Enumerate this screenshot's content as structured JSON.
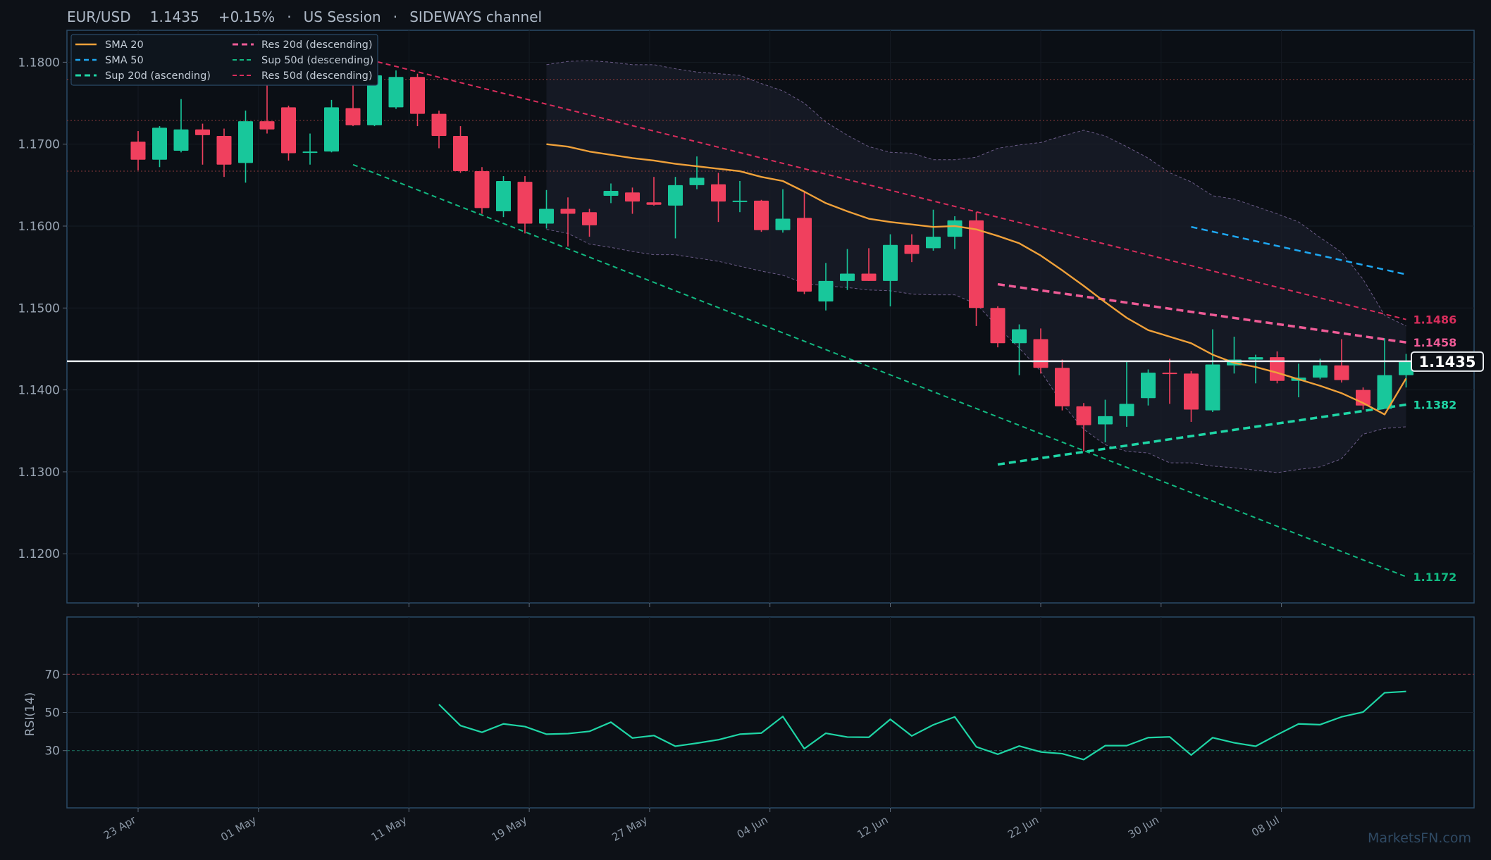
{
  "header": {
    "symbol": "EUR/USD",
    "price": "1.1435",
    "change": "+0.15%",
    "session": "US Session",
    "regime": "SIDEWAYS channel",
    "separator": "·"
  },
  "watermark": "MarketsFN.com",
  "colors": {
    "background": "#0d1117",
    "up": "#18c79b",
    "down": "#f0405e",
    "sma20": "#f0a13a",
    "sma50": "#1ea7f2",
    "sup20": "#1fd6a6",
    "res20": "#ee5b96",
    "sup50": "#12b981",
    "res50": "#d92d5c",
    "rsi": "#1fd6a6",
    "axis": "#2b4a67"
  },
  "chart_data": [
    {
      "type": "candlestick",
      "title": "EUR/USD",
      "ylim": [
        1.114,
        1.1839
      ],
      "y_ticks": [
        1.12,
        1.13,
        1.14,
        1.15,
        1.16,
        1.17,
        1.18
      ],
      "y_tick_labels": [
        "1.1200",
        "1.1300",
        "1.1400",
        "1.1500",
        "1.1600",
        "1.1700",
        "1.1800"
      ],
      "x_tick_labels": [
        {
          "date": "2025-04-23",
          "label": "23 Apr"
        },
        {
          "date": "2025-05-01",
          "label": "01 May"
        },
        {
          "date": "2025-05-11",
          "label": "11 May"
        },
        {
          "date": "2025-05-19",
          "label": "19 May"
        },
        {
          "date": "2025-05-27",
          "label": "27 May"
        },
        {
          "date": "2025-06-04",
          "label": "04 Jun"
        },
        {
          "date": "2025-06-12",
          "label": "12 Jun"
        },
        {
          "date": "2025-06-22",
          "label": "22 Jun"
        },
        {
          "date": "2025-06-30",
          "label": "30 Jun"
        },
        {
          "date": "2025-07-08",
          "label": "08 Jul"
        }
      ],
      "candles": [
        {
          "o": 1.1703,
          "h": 1.1716,
          "l": 1.1668,
          "c": 1.1681
        },
        {
          "o": 1.1681,
          "h": 1.1722,
          "l": 1.1672,
          "c": 1.172
        },
        {
          "o": 1.1692,
          "h": 1.1755,
          "l": 1.169,
          "c": 1.1718
        },
        {
          "o": 1.1718,
          "h": 1.1725,
          "l": 1.1675,
          "c": 1.1711
        },
        {
          "o": 1.171,
          "h": 1.1719,
          "l": 1.166,
          "c": 1.1675
        },
        {
          "o": 1.1677,
          "h": 1.1741,
          "l": 1.1653,
          "c": 1.1728
        },
        {
          "o": 1.1728,
          "h": 1.1778,
          "l": 1.1713,
          "c": 1.1718
        },
        {
          "o": 1.1745,
          "h": 1.1747,
          "l": 1.168,
          "c": 1.1689
        },
        {
          "o": 1.169,
          "h": 1.1713,
          "l": 1.1675,
          "c": 1.1691
        },
        {
          "o": 1.1691,
          "h": 1.1754,
          "l": 1.169,
          "c": 1.1745
        },
        {
          "o": 1.1744,
          "h": 1.179,
          "l": 1.1722,
          "c": 1.1723
        },
        {
          "o": 1.1723,
          "h": 1.1795,
          "l": 1.1722,
          "c": 1.1784
        },
        {
          "o": 1.1745,
          "h": 1.179,
          "l": 1.1743,
          "c": 1.1782
        },
        {
          "o": 1.1782,
          "h": 1.1786,
          "l": 1.1722,
          "c": 1.1737
        },
        {
          "o": 1.1737,
          "h": 1.1741,
          "l": 1.1695,
          "c": 1.171
        },
        {
          "o": 1.171,
          "h": 1.1722,
          "l": 1.1665,
          "c": 1.1667
        },
        {
          "o": 1.1667,
          "h": 1.1672,
          "l": 1.1615,
          "c": 1.1622
        },
        {
          "o": 1.1618,
          "h": 1.1661,
          "l": 1.1611,
          "c": 1.1655
        },
        {
          "o": 1.1654,
          "h": 1.1661,
          "l": 1.1591,
          "c": 1.1603
        },
        {
          "o": 1.1603,
          "h": 1.1644,
          "l": 1.1597,
          "c": 1.1621
        },
        {
          "o": 1.1621,
          "h": 1.1635,
          "l": 1.1575,
          "c": 1.1615
        },
        {
          "o": 1.1617,
          "h": 1.1621,
          "l": 1.1587,
          "c": 1.1601
        },
        {
          "o": 1.1637,
          "h": 1.1652,
          "l": 1.1628,
          "c": 1.1643
        },
        {
          "o": 1.1641,
          "h": 1.1647,
          "l": 1.1615,
          "c": 1.163
        },
        {
          "o": 1.1629,
          "h": 1.166,
          "l": 1.1625,
          "c": 1.1626
        },
        {
          "o": 1.1625,
          "h": 1.166,
          "l": 1.1585,
          "c": 1.165
        },
        {
          "o": 1.165,
          "h": 1.1685,
          "l": 1.1645,
          "c": 1.1659
        },
        {
          "o": 1.1651,
          "h": 1.1665,
          "l": 1.1605,
          "c": 1.163
        },
        {
          "o": 1.163,
          "h": 1.1655,
          "l": 1.1617,
          "c": 1.1631
        },
        {
          "o": 1.1631,
          "h": 1.1632,
          "l": 1.1593,
          "c": 1.1595
        },
        {
          "o": 1.1595,
          "h": 1.1645,
          "l": 1.1592,
          "c": 1.1609
        },
        {
          "o": 1.161,
          "h": 1.1643,
          "l": 1.1517,
          "c": 1.152
        },
        {
          "o": 1.1508,
          "h": 1.1555,
          "l": 1.1497,
          "c": 1.1533
        },
        {
          "o": 1.1533,
          "h": 1.1572,
          "l": 1.1522,
          "c": 1.1542
        },
        {
          "o": 1.1542,
          "h": 1.1573,
          "l": 1.1533,
          "c": 1.1533
        },
        {
          "o": 1.1533,
          "h": 1.159,
          "l": 1.1502,
          "c": 1.1577
        },
        {
          "o": 1.1577,
          "h": 1.159,
          "l": 1.1556,
          "c": 1.1566
        },
        {
          "o": 1.1573,
          "h": 1.162,
          "l": 1.157,
          "c": 1.1587
        },
        {
          "o": 1.1587,
          "h": 1.1612,
          "l": 1.1572,
          "c": 1.1607
        },
        {
          "o": 1.1607,
          "h": 1.1617,
          "l": 1.1478,
          "c": 1.15
        },
        {
          "o": 1.15,
          "h": 1.1502,
          "l": 1.1452,
          "c": 1.1457
        },
        {
          "o": 1.1457,
          "h": 1.148,
          "l": 1.1418,
          "c": 1.1474
        },
        {
          "o": 1.1462,
          "h": 1.1475,
          "l": 1.142,
          "c": 1.1427
        },
        {
          "o": 1.1427,
          "h": 1.1437,
          "l": 1.1375,
          "c": 1.138
        },
        {
          "o": 1.138,
          "h": 1.1384,
          "l": 1.1325,
          "c": 1.1357
        },
        {
          "o": 1.1358,
          "h": 1.1388,
          "l": 1.1336,
          "c": 1.1368
        },
        {
          "o": 1.1368,
          "h": 1.1435,
          "l": 1.1355,
          "c": 1.1383
        },
        {
          "o": 1.139,
          "h": 1.1425,
          "l": 1.1381,
          "c": 1.1421
        },
        {
          "o": 1.1421,
          "h": 1.1438,
          "l": 1.1383,
          "c": 1.142
        },
        {
          "o": 1.142,
          "h": 1.1423,
          "l": 1.1361,
          "c": 1.1376
        },
        {
          "o": 1.1375,
          "h": 1.1474,
          "l": 1.1373,
          "c": 1.1431
        },
        {
          "o": 1.143,
          "h": 1.1465,
          "l": 1.142,
          "c": 1.1437
        },
        {
          "o": 1.1437,
          "h": 1.1443,
          "l": 1.1408,
          "c": 1.144
        },
        {
          "o": 1.144,
          "h": 1.1447,
          "l": 1.1408,
          "c": 1.1411
        },
        {
          "o": 1.1411,
          "h": 1.1432,
          "l": 1.1391,
          "c": 1.1415
        },
        {
          "o": 1.1415,
          "h": 1.1438,
          "l": 1.1413,
          "c": 1.143
        },
        {
          "o": 1.143,
          "h": 1.1462,
          "l": 1.1409,
          "c": 1.1412
        },
        {
          "o": 1.14,
          "h": 1.1403,
          "l": 1.1376,
          "c": 1.1381
        },
        {
          "o": 1.1377,
          "h": 1.1463,
          "l": 1.1377,
          "c": 1.1418
        },
        {
          "o": 1.1418,
          "h": 1.1444,
          "l": 1.1403,
          "c": 1.1435
        }
      ],
      "sma20": [
        [
          19,
          1.17
        ],
        [
          20,
          1.1697
        ],
        [
          21,
          1.1691
        ],
        [
          22,
          1.1687
        ],
        [
          23,
          1.1683
        ],
        [
          24,
          1.168
        ],
        [
          25,
          1.1676
        ],
        [
          26,
          1.1673
        ],
        [
          27,
          1.167
        ],
        [
          28,
          1.1667
        ],
        [
          29,
          1.166
        ],
        [
          30,
          1.1655
        ],
        [
          31,
          1.1642
        ],
        [
          32,
          1.1628
        ],
        [
          33,
          1.1618
        ],
        [
          34,
          1.1609
        ],
        [
          35,
          1.1605
        ],
        [
          36,
          1.1602
        ],
        [
          37,
          1.1599
        ],
        [
          38,
          1.16
        ],
        [
          39,
          1.1596
        ],
        [
          40,
          1.1588
        ],
        [
          41,
          1.1579
        ],
        [
          42,
          1.1564
        ],
        [
          43,
          1.1546
        ],
        [
          44,
          1.1527
        ],
        [
          45,
          1.1507
        ],
        [
          46,
          1.1488
        ],
        [
          47,
          1.1473
        ],
        [
          48,
          1.1465
        ],
        [
          49,
          1.1457
        ],
        [
          50,
          1.1443
        ],
        [
          51,
          1.1433
        ],
        [
          52,
          1.1428
        ],
        [
          53,
          1.1421
        ],
        [
          54,
          1.1413
        ],
        [
          55,
          1.1405
        ],
        [
          56,
          1.1396
        ],
        [
          57,
          1.1384
        ],
        [
          58,
          1.137
        ],
        [
          59,
          1.1414
        ]
      ],
      "bollinger_band": {
        "from_index": 19,
        "upper": [
          1.1797,
          1.1801,
          1.1802,
          1.18,
          1.1797,
          1.1797,
          1.1792,
          1.1788,
          1.1786,
          1.1784,
          1.1774,
          1.1765,
          1.175,
          1.1727,
          1.1711,
          1.1697,
          1.169,
          1.1689,
          1.1681,
          1.1681,
          1.1684,
          1.1695,
          1.1699,
          1.1702,
          1.171,
          1.1717,
          1.171,
          1.1697,
          1.1683,
          1.1665,
          1.1654,
          1.1637,
          1.1633,
          1.1624,
          1.1615,
          1.1605,
          1.1586,
          1.1568,
          1.1535,
          1.1491,
          1.1478
        ],
        "lower": [
          1.1596,
          1.1591,
          1.1578,
          1.1574,
          1.1569,
          1.1565,
          1.1565,
          1.1561,
          1.1557,
          1.1551,
          1.1545,
          1.154,
          1.153,
          1.1527,
          1.1525,
          1.1522,
          1.1521,
          1.1517,
          1.1516,
          1.1516,
          1.1505,
          1.1477,
          1.1451,
          1.1423,
          1.1383,
          1.1352,
          1.1333,
          1.1325,
          1.1323,
          1.1311,
          1.1311,
          1.1307,
          1.1305,
          1.1302,
          1.1299,
          1.1303,
          1.1306,
          1.1316,
          1.1346,
          1.1353,
          1.1355
        ]
      },
      "trend_lines": [
        {
          "name": "SMA 20",
          "style": "solid"
        },
        {
          "name": "SMA 50",
          "style": "dashed",
          "points": [
            [
              49,
              1.1599
            ],
            [
              59,
              1.1541
            ]
          ]
        },
        {
          "name": "Sup 20d (ascending)",
          "style": "dashed-bold",
          "points": [
            [
              40,
              1.1309
            ],
            [
              59,
              1.1382
            ]
          ],
          "end_label": "1.1382"
        },
        {
          "name": "Res 20d (descending)",
          "style": "dashed-bold",
          "points": [
            [
              40,
              1.1529
            ],
            [
              59,
              1.1458
            ]
          ],
          "end_label": "1.1458"
        },
        {
          "name": "Sup 50d (descending)",
          "style": "dashed-thin",
          "points": [
            [
              10,
              1.1675
            ],
            [
              59,
              1.1172
            ]
          ],
          "end_label": "1.1172"
        },
        {
          "name": "Res 50d (descending)",
          "style": "dashed-thin",
          "points": [
            [
              10,
              1.1808
            ],
            [
              59,
              1.1486
            ]
          ],
          "end_label": "1.1486"
        }
      ],
      "horizontal_levels": [
        1.1779,
        1.1729,
        1.1667
      ],
      "current_price": 1.1435,
      "current_price_label": "1.1435",
      "legend_position": "top-left",
      "grid": true
    },
    {
      "type": "line",
      "ylabel": "RSI(14)",
      "ylim": [
        0,
        100
      ],
      "y_ticks": [
        30,
        50,
        70
      ],
      "y_tick_labels": [
        "30",
        "50",
        "70"
      ],
      "reference_lines": [
        70,
        30
      ],
      "series": [
        {
          "name": "RSI(14)",
          "from_index": 14,
          "values": [
            54.2,
            43.1,
            39.6,
            44.0,
            42.6,
            38.6,
            38.9,
            40.1,
            44.9,
            36.6,
            37.9,
            32.3,
            33.9,
            35.7,
            38.6,
            39.2,
            47.9,
            31.0,
            39.1,
            37.1,
            37.0,
            46.4,
            37.7,
            43.5,
            47.7,
            32.0,
            28.1,
            32.4,
            29.3,
            28.4,
            25.3,
            32.6,
            32.6,
            36.8,
            37.2,
            27.7,
            36.8,
            34.1,
            32.3,
            38.3,
            44.0,
            43.6,
            47.7,
            50.2,
            60.3,
            61.0
          ]
        }
      ]
    }
  ]
}
